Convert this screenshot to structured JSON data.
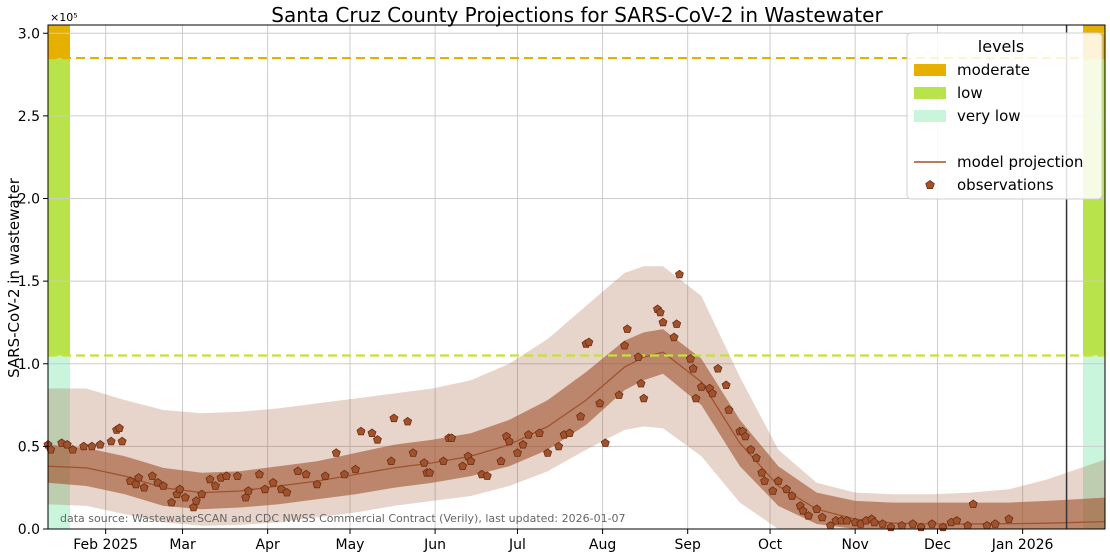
{
  "chart_data": {
    "type": "line",
    "title": "Santa Cruz County Projections for SARS-CoV-2 in Wastewater",
    "ylabel": "SARS-CoV-2 in wastewater",
    "xlabel": "",
    "y_scale_label": "×10⁵",
    "ylim": [
      0,
      305000
    ],
    "xlim": [
      "2025-01-11",
      "2026-01-31"
    ],
    "y_ticks": [
      {
        "value": 0,
        "label": "0.0"
      },
      {
        "value": 50000,
        "label": "0.5"
      },
      {
        "value": 100000,
        "label": "1.0"
      },
      {
        "value": 150000,
        "label": "1.5"
      },
      {
        "value": 200000,
        "label": "2.0"
      },
      {
        "value": 250000,
        "label": "2.5"
      },
      {
        "value": 300000,
        "label": "3.0"
      }
    ],
    "x_ticks": [
      {
        "date": "2025-02-01",
        "label": "Feb 2025"
      },
      {
        "date": "2025-03-01",
        "label": "Mar"
      },
      {
        "date": "2025-04-01",
        "label": "Apr"
      },
      {
        "date": "2025-05-01",
        "label": "May"
      },
      {
        "date": "2025-06-01",
        "label": "Jun"
      },
      {
        "date": "2025-07-01",
        "label": "Jul"
      },
      {
        "date": "2025-08-01",
        "label": "Aug"
      },
      {
        "date": "2025-09-01",
        "label": "Sep"
      },
      {
        "date": "2025-10-01",
        "label": "Oct"
      },
      {
        "date": "2025-11-01",
        "label": "Nov"
      },
      {
        "date": "2025-12-01",
        "label": "Dec"
      },
      {
        "date": "2026-01-01",
        "label": "Jan 2026"
      }
    ],
    "grid": true,
    "legend_position": "top-right",
    "legend": {
      "title": "levels",
      "entries": [
        {
          "label": "moderate",
          "kind": "patch",
          "color": "#e6b000"
        },
        {
          "label": "low",
          "kind": "patch",
          "color": "#b8e34a"
        },
        {
          "label": "very low",
          "kind": "patch",
          "color": "#c8f5dc"
        },
        {
          "label": "",
          "kind": "spacer"
        },
        {
          "label": "model projection",
          "kind": "line",
          "color": "#a0522d"
        },
        {
          "label": "observations",
          "kind": "marker",
          "color": "#a0522d"
        }
      ]
    },
    "thresholds": [
      {
        "level": "low",
        "value": 105000,
        "color": "#c6e13a"
      },
      {
        "level": "moderate",
        "value": 285000,
        "color": "#e6b000"
      }
    ],
    "level_bands": [
      {
        "level": "very low",
        "from": 0,
        "to": 105000,
        "color": "#c8f5dc"
      },
      {
        "level": "low",
        "from": 105000,
        "to": 285000,
        "color": "#b8e34a"
      },
      {
        "level": "moderate",
        "from": 285000,
        "to": 305000,
        "color": "#e6b000"
      }
    ],
    "today_marker_date": "2026-01-17",
    "colors": {
      "inner_band": "#a0522d",
      "outer_band": "#a0522d",
      "observation_fill": "#a0522d",
      "observation_edge": "#6b2e12",
      "projection_line": "#a0522d"
    },
    "projection": {
      "dates": [
        "2025-01-11",
        "2025-01-25",
        "2025-02-08",
        "2025-02-22",
        "2025-03-08",
        "2025-03-22",
        "2025-04-05",
        "2025-04-19",
        "2025-05-03",
        "2025-05-17",
        "2025-05-31",
        "2025-06-14",
        "2025-06-28",
        "2025-07-12",
        "2025-07-26",
        "2025-08-09",
        "2025-08-16",
        "2025-08-23",
        "2025-09-06",
        "2025-09-20",
        "2025-10-04",
        "2025-10-18",
        "2025-11-01",
        "2025-11-15",
        "2025-11-29",
        "2025-12-13",
        "2025-12-27",
        "2026-01-10",
        "2026-01-31"
      ],
      "median": [
        38000,
        37000,
        32000,
        25000,
        22000,
        23000,
        26000,
        29000,
        33000,
        37000,
        40000,
        44000,
        51000,
        62000,
        78000,
        98000,
        104000,
        107000,
        89000,
        52000,
        26000,
        12000,
        6000,
        3500,
        3000,
        3000,
        3200,
        3500,
        4500
      ],
      "inner_lower": [
        28000,
        26000,
        21000,
        14000,
        12000,
        13000,
        15000,
        18000,
        21000,
        25000,
        28000,
        32000,
        38000,
        48000,
        63000,
        84000,
        90000,
        94000,
        75000,
        38000,
        14000,
        3000,
        0,
        0,
        0,
        0,
        0,
        0,
        0
      ],
      "inner_upper": [
        51000,
        49000,
        44000,
        37000,
        34000,
        35000,
        38000,
        41000,
        46000,
        51000,
        54000,
        58000,
        66000,
        78000,
        95000,
        114000,
        119000,
        121000,
        103000,
        66000,
        38000,
        22000,
        17000,
        16000,
        16000,
        16000,
        16000,
        17000,
        19000
      ],
      "outer_lower": [
        15000,
        14000,
        9000,
        4000,
        2000,
        2500,
        4000,
        7000,
        10000,
        14000,
        17000,
        20000,
        26000,
        35000,
        48000,
        60000,
        62000,
        61000,
        44000,
        16000,
        0,
        0,
        0,
        0,
        0,
        0,
        0,
        0,
        0
      ],
      "outer_upper": [
        85000,
        85000,
        78000,
        72000,
        70000,
        71000,
        73000,
        76000,
        79000,
        82000,
        85000,
        90000,
        100000,
        115000,
        135000,
        155000,
        159000,
        159000,
        141000,
        92000,
        48000,
        28000,
        22000,
        21000,
        21000,
        22000,
        24000,
        30000,
        42000
      ]
    },
    "observations": [
      {
        "x": "2025-01-11",
        "y": 51000
      },
      {
        "x": "2025-01-12",
        "y": 48000
      },
      {
        "x": "2025-01-16",
        "y": 52000
      },
      {
        "x": "2025-01-18",
        "y": 51000
      },
      {
        "x": "2025-01-20",
        "y": 48000
      },
      {
        "x": "2025-01-24",
        "y": 50000
      },
      {
        "x": "2025-01-27",
        "y": 50000
      },
      {
        "x": "2025-01-30",
        "y": 51000
      },
      {
        "x": "2025-02-03",
        "y": 53000
      },
      {
        "x": "2025-02-05",
        "y": 60000
      },
      {
        "x": "2025-02-06",
        "y": 61000
      },
      {
        "x": "2025-02-07",
        "y": 53000
      },
      {
        "x": "2025-02-10",
        "y": 29000
      },
      {
        "x": "2025-02-12",
        "y": 27000
      },
      {
        "x": "2025-02-13",
        "y": 31000
      },
      {
        "x": "2025-02-15",
        "y": 25000
      },
      {
        "x": "2025-02-18",
        "y": 32000
      },
      {
        "x": "2025-02-20",
        "y": 28000
      },
      {
        "x": "2025-02-22",
        "y": 26000
      },
      {
        "x": "2025-02-25",
        "y": 16000
      },
      {
        "x": "2025-02-27",
        "y": 21000
      },
      {
        "x": "2025-02-28",
        "y": 24000
      },
      {
        "x": "2025-03-02",
        "y": 19000
      },
      {
        "x": "2025-03-05",
        "y": 13000
      },
      {
        "x": "2025-03-06",
        "y": 17000
      },
      {
        "x": "2025-03-08",
        "y": 21000
      },
      {
        "x": "2025-03-11",
        "y": 30000
      },
      {
        "x": "2025-03-13",
        "y": 26000
      },
      {
        "x": "2025-03-15",
        "y": 31000
      },
      {
        "x": "2025-03-17",
        "y": 32000
      },
      {
        "x": "2025-03-21",
        "y": 32000
      },
      {
        "x": "2025-03-24",
        "y": 19000
      },
      {
        "x": "2025-03-25",
        "y": 23000
      },
      {
        "x": "2025-03-29",
        "y": 33000
      },
      {
        "x": "2025-03-31",
        "y": 24000
      },
      {
        "x": "2025-04-03",
        "y": 28000
      },
      {
        "x": "2025-04-06",
        "y": 24000
      },
      {
        "x": "2025-04-08",
        "y": 22000
      },
      {
        "x": "2025-04-12",
        "y": 35000
      },
      {
        "x": "2025-04-15",
        "y": 33000
      },
      {
        "x": "2025-04-19",
        "y": 27000
      },
      {
        "x": "2025-04-22",
        "y": 32000
      },
      {
        "x": "2025-04-26",
        "y": 46000
      },
      {
        "x": "2025-04-29",
        "y": 33000
      },
      {
        "x": "2025-05-03",
        "y": 36000
      },
      {
        "x": "2025-05-05",
        "y": 59000
      },
      {
        "x": "2025-05-09",
        "y": 58000
      },
      {
        "x": "2025-05-11",
        "y": 54000
      },
      {
        "x": "2025-05-16",
        "y": 41000
      },
      {
        "x": "2025-05-17",
        "y": 67000
      },
      {
        "x": "2025-05-22",
        "y": 65000
      },
      {
        "x": "2025-05-24",
        "y": 46000
      },
      {
        "x": "2025-05-28",
        "y": 40000
      },
      {
        "x": "2025-05-29",
        "y": 34000
      },
      {
        "x": "2025-05-30",
        "y": 34000
      },
      {
        "x": "2025-06-04",
        "y": 41000
      },
      {
        "x": "2025-06-06",
        "y": 55000
      },
      {
        "x": "2025-06-07",
        "y": 55000
      },
      {
        "x": "2025-06-11",
        "y": 38000
      },
      {
        "x": "2025-06-13",
        "y": 44000
      },
      {
        "x": "2025-06-14",
        "y": 41000
      },
      {
        "x": "2025-06-18",
        "y": 33000
      },
      {
        "x": "2025-06-20",
        "y": 32000
      },
      {
        "x": "2025-06-25",
        "y": 41000
      },
      {
        "x": "2025-06-27",
        "y": 56000
      },
      {
        "x": "2025-06-28",
        "y": 53000
      },
      {
        "x": "2025-07-01",
        "y": 46000
      },
      {
        "x": "2025-07-03",
        "y": 51000
      },
      {
        "x": "2025-07-05",
        "y": 57000
      },
      {
        "x": "2025-07-09",
        "y": 58000
      },
      {
        "x": "2025-07-12",
        "y": 46000
      },
      {
        "x": "2025-07-16",
        "y": 50000
      },
      {
        "x": "2025-07-18",
        "y": 57000
      },
      {
        "x": "2025-07-20",
        "y": 58000
      },
      {
        "x": "2025-07-24",
        "y": 68000
      },
      {
        "x": "2025-07-26",
        "y": 112000
      },
      {
        "x": "2025-07-27",
        "y": 113000
      },
      {
        "x": "2025-07-31",
        "y": 76000
      },
      {
        "x": "2025-08-02",
        "y": 52000
      },
      {
        "x": "2025-08-07",
        "y": 81000
      },
      {
        "x": "2025-08-09",
        "y": 111000
      },
      {
        "x": "2025-08-10",
        "y": 121000
      },
      {
        "x": "2025-08-14",
        "y": 104000
      },
      {
        "x": "2025-08-15",
        "y": 88000
      },
      {
        "x": "2025-08-16",
        "y": 79000
      },
      {
        "x": "2025-08-21",
        "y": 133000
      },
      {
        "x": "2025-08-22",
        "y": 131000
      },
      {
        "x": "2025-08-23",
        "y": 125000
      },
      {
        "x": "2025-08-27",
        "y": 116000
      },
      {
        "x": "2025-08-28",
        "y": 124000
      },
      {
        "x": "2025-08-29",
        "y": 154000
      },
      {
        "x": "2025-09-02",
        "y": 103000
      },
      {
        "x": "2025-09-03",
        "y": 97000
      },
      {
        "x": "2025-09-04",
        "y": 79000
      },
      {
        "x": "2025-09-06",
        "y": 86000
      },
      {
        "x": "2025-09-09",
        "y": 85000
      },
      {
        "x": "2025-09-10",
        "y": 82000
      },
      {
        "x": "2025-09-12",
        "y": 97000
      },
      {
        "x": "2025-09-15",
        "y": 87000
      },
      {
        "x": "2025-09-16",
        "y": 72000
      },
      {
        "x": "2025-09-20",
        "y": 59000
      },
      {
        "x": "2025-09-21",
        "y": 59000
      },
      {
        "x": "2025-09-22",
        "y": 56000
      },
      {
        "x": "2025-09-24",
        "y": 48000
      },
      {
        "x": "2025-09-26",
        "y": 43000
      },
      {
        "x": "2025-09-28",
        "y": 34000
      },
      {
        "x": "2025-09-29",
        "y": 29000
      },
      {
        "x": "2025-10-02",
        "y": 23000
      },
      {
        "x": "2025-10-04",
        "y": 29000
      },
      {
        "x": "2025-10-07",
        "y": 24000
      },
      {
        "x": "2025-10-09",
        "y": 20000
      },
      {
        "x": "2025-10-12",
        "y": 14000
      },
      {
        "x": "2025-10-13",
        "y": 11000
      },
      {
        "x": "2025-10-15",
        "y": 8000
      },
      {
        "x": "2025-10-18",
        "y": 12000
      },
      {
        "x": "2025-10-20",
        "y": 7000
      },
      {
        "x": "2025-10-23",
        "y": 2000
      },
      {
        "x": "2025-10-25",
        "y": 5000
      },
      {
        "x": "2025-10-27",
        "y": 5000
      },
      {
        "x": "2025-10-29",
        "y": 5000
      },
      {
        "x": "2025-11-01",
        "y": 4000
      },
      {
        "x": "2025-11-03",
        "y": 3000
      },
      {
        "x": "2025-11-05",
        "y": 5000
      },
      {
        "x": "2025-11-07",
        "y": 6000
      },
      {
        "x": "2025-11-08",
        "y": 4000
      },
      {
        "x": "2025-11-11",
        "y": 3000
      },
      {
        "x": "2025-11-14",
        "y": 1000
      },
      {
        "x": "2025-11-18",
        "y": 2000
      },
      {
        "x": "2025-11-22",
        "y": 3000
      },
      {
        "x": "2025-11-25",
        "y": 1000
      },
      {
        "x": "2025-11-29",
        "y": 3000
      },
      {
        "x": "2025-12-03",
        "y": 1000
      },
      {
        "x": "2025-12-06",
        "y": 4000
      },
      {
        "x": "2025-12-08",
        "y": 5000
      },
      {
        "x": "2025-12-12",
        "y": 2000
      },
      {
        "x": "2025-12-14",
        "y": 15000
      },
      {
        "x": "2025-12-19",
        "y": 2000
      },
      {
        "x": "2025-12-22",
        "y": 3000
      },
      {
        "x": "2025-12-27",
        "y": 6000
      }
    ]
  },
  "source_note": "data source: WastewaterSCAN and CDC NWSS Commercial Contract (Verily), last updated: 2026-01-07"
}
